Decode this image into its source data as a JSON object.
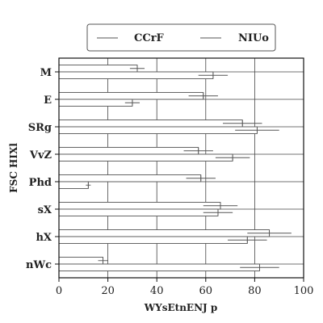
{
  "chart_data": {
    "type": "bar",
    "orientation": "horizontal",
    "categories": [
      "M",
      "E",
      "SRg",
      "VvZ",
      "Phd",
      "sX",
      "hX",
      "nWc"
    ],
    "series": [
      {
        "name": "CCrF",
        "values": [
          32,
          59,
          75,
          57,
          58,
          66,
          86,
          18
        ],
        "errors": [
          3,
          6,
          8,
          6,
          6,
          7,
          9,
          2
        ]
      },
      {
        "name": "NIUo",
        "values": [
          63,
          30,
          81,
          71,
          12,
          65,
          77,
          82
        ],
        "errors": [
          6,
          3,
          9,
          7,
          1,
          6,
          8,
          8
        ]
      }
    ],
    "title": "",
    "xlabel": "WYsEtnENJ p",
    "ylabel": "FSC HIXl",
    "xlim": [
      0,
      100
    ],
    "xticks": [
      0,
      20,
      40,
      60,
      80,
      100
    ],
    "bar_fill": "#ffffff",
    "bar_edge": "#555555",
    "grid": true,
    "legend_position": "top-center"
  }
}
